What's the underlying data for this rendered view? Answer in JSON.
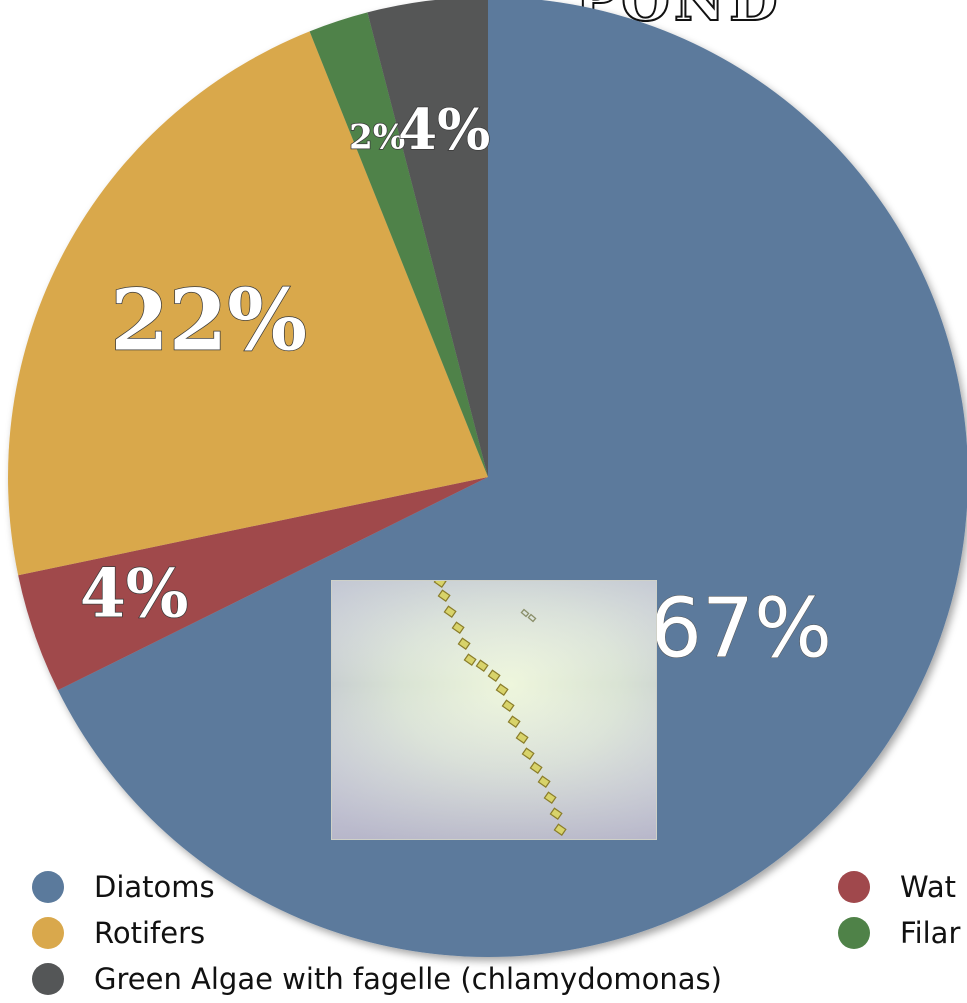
{
  "chart_data": {
    "type": "pie",
    "title": "POND",
    "slices": [
      {
        "name": "Diatoms",
        "value": 67,
        "label": "67%",
        "color": "#5b7a9c"
      },
      {
        "name": "Water",
        "value": 4,
        "label": "4%",
        "color": "#a0484c"
      },
      {
        "name": "Rotifers",
        "value": 22,
        "label": "22%",
        "color": "#d9a84c"
      },
      {
        "name": "Filamentous",
        "value": 2,
        "label": "2%",
        "color": "#4f8248"
      },
      {
        "name": "Green Algae with fagelle (chlamydomonas)",
        "value": 4,
        "label": "4%",
        "color": "#545657"
      }
    ],
    "legend": [
      {
        "label": "Diatoms",
        "color": "#5b7a9c"
      },
      {
        "label": "Rotifers",
        "color": "#d9a84c"
      },
      {
        "label": "Green Algae with fagelle (chlamydomonas)",
        "color": "#545657"
      },
      {
        "label": "Wat",
        "color": "#a0484c"
      },
      {
        "label": "Filar",
        "color": "#4f8248"
      }
    ],
    "legend_position": "bottom"
  },
  "micrograph": {
    "icon": "microscope-photo-diatom-chain"
  }
}
